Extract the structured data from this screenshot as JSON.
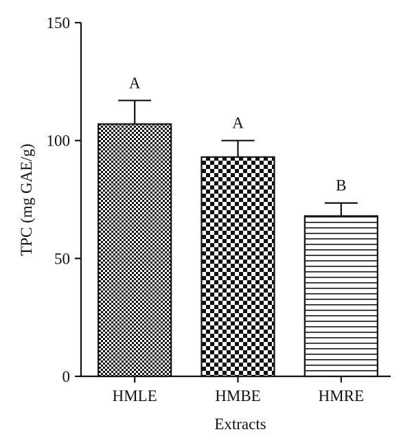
{
  "chart_data": {
    "type": "bar",
    "xlabel": "Extracts",
    "ylabel": "TPC (mg GAE/g)",
    "ylim": [
      0,
      150
    ],
    "yticks": [
      0,
      50,
      100,
      150
    ],
    "categories": [
      "HMLE",
      "HMBE",
      "HMRE"
    ],
    "values": [
      107,
      93,
      68
    ],
    "errors": [
      10,
      7,
      5.5
    ],
    "significance_labels": [
      "A",
      "A",
      "B"
    ],
    "fill_patterns": [
      "fine-checker",
      "coarse-checker",
      "horizontal-lines"
    ],
    "grid": false,
    "legend": "none"
  }
}
